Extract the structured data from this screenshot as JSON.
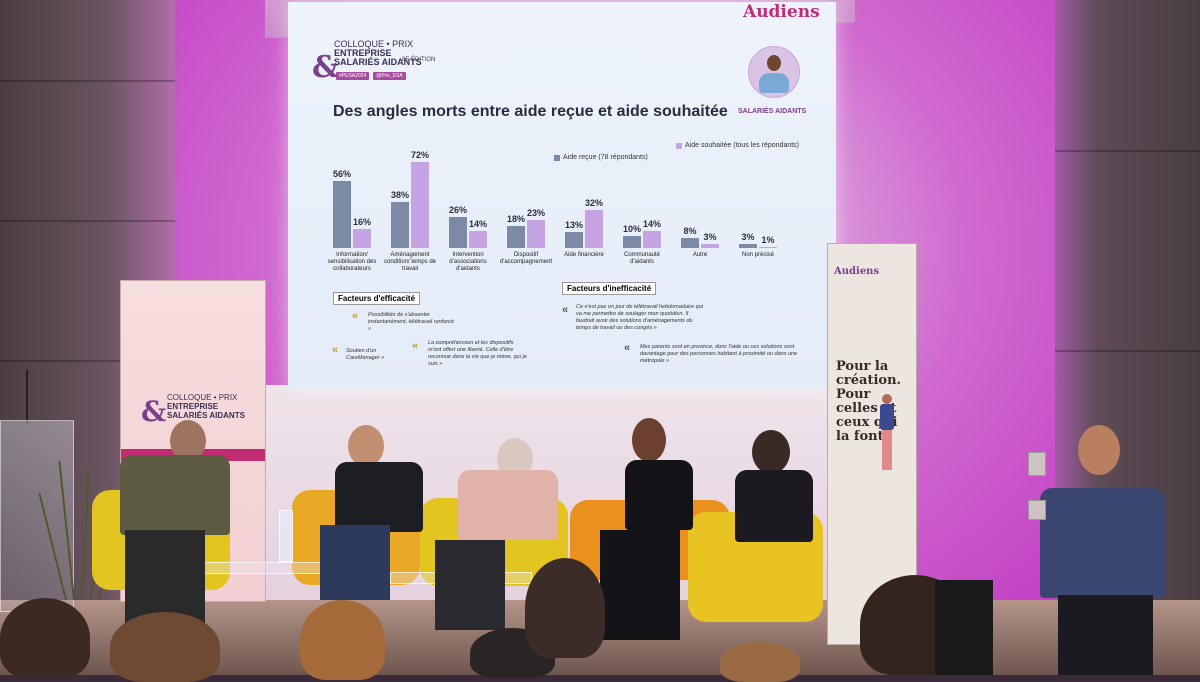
{
  "slide": {
    "brand": "Audiens",
    "event_line1": "COLLOQUE • PRIX",
    "event_line2": "ENTREPRISE",
    "event_line3": "SALARIÉS AIDANTS",
    "edition": "8E ÉDITION",
    "tags": [
      "#PESA2024",
      "@Prix_ESA"
    ],
    "title": "Des angles morts entre aide reçue et aide souhaitée",
    "avatar_label": "SALARIÉS AIDANTS",
    "legend": {
      "received": "Aide reçue (78 répondants)",
      "desired": "Aide souhaitée (tous les répondants)"
    },
    "factors_efficacy_title": "Facteurs d'efficacité",
    "factors_inefficacy_title": "Facteurs d'inefficacité",
    "quotes": [
      "Possibilités de s'absenter instantanément, télétravail renforcé »",
      "Soutien d'un CareManager »",
      "La compréhension et les dispositifs m'ont offert une liberté. Celle d'être reconnue dans la vie que je mène, qui je suis »",
      "Ce n'est pas un jour de télétravail hebdomadaire qui va me permettre de soulager mon quotidien. Il faudrait avoir des solutions d'aménagements du temps de travail ou des congés »",
      "Mes parents sont en province, donc l'aide ou ces solutions sont davantage pour des personnes habitant à proximité ou dans une métropole »"
    ]
  },
  "chart_data": {
    "type": "bar",
    "categories": [
      "Information/ sensibilisation des collaborateurs",
      "Aménagement condition/ temps de travail",
      "Intervention d'associations d'aidants",
      "Dispositif d'accompagnement",
      "Aide financière",
      "Communauté d'aidants",
      "Autre",
      "Non précisé"
    ],
    "series": [
      {
        "name": "Aide reçue (78 répondants)",
        "values": [
          56,
          38,
          26,
          18,
          13,
          10,
          8,
          3
        ]
      },
      {
        "name": "Aide souhaitée (tous les répondants)",
        "values": [
          16,
          72,
          14,
          23,
          32,
          14,
          3,
          1
        ]
      }
    ],
    "value_labels": {
      "received": [
        "56%",
        "38%",
        "26%",
        "18%",
        "13%",
        "10%",
        "8%",
        "3%"
      ],
      "desired": [
        "16%",
        "72%",
        "14%",
        "23%",
        "32%",
        "14%",
        "3%",
        "1%"
      ]
    },
    "colors": {
      "received": "#7d8aa6",
      "desired": "#c6a3e3"
    },
    "ylim": [
      0,
      80
    ],
    "legend_position": "top-right"
  },
  "banner_left": {
    "line1": "COLLOQUE • PRIX",
    "line2": "ENTREPRISE",
    "line3": "SALARIÉS AIDANTS"
  },
  "banner_right": {
    "brand": "Audiens",
    "slogan": "Pour la création. Pour celles et ceux qui la font."
  }
}
